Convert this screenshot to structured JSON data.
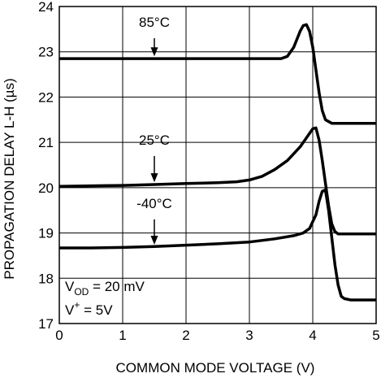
{
  "chart_data": {
    "type": "line",
    "title": "",
    "xlabel": "COMMON MODE VOLTAGE (V)",
    "ylabel": "PROPAGATION DELAY L-H (µs)",
    "xlim": [
      0,
      5
    ],
    "ylim": [
      17,
      24
    ],
    "xticks": [
      "0",
      "1",
      "2",
      "3",
      "4",
      "5"
    ],
    "yticks": [
      "17",
      "18",
      "19",
      "20",
      "21",
      "22",
      "23",
      "24"
    ],
    "grid": true,
    "series": [
      {
        "name": "85°C",
        "x": [
          0,
          0.5,
          1,
          1.5,
          2,
          2.5,
          3,
          3.5,
          3.6,
          3.7,
          3.8,
          3.85,
          3.9,
          3.95,
          4.0,
          4.05,
          4.1,
          4.15,
          4.2,
          4.3,
          4.4,
          4.6,
          5.0
        ],
        "y": [
          22.85,
          22.85,
          22.85,
          22.85,
          22.85,
          22.85,
          22.85,
          22.85,
          22.9,
          23.1,
          23.45,
          23.58,
          23.6,
          23.45,
          23.1,
          22.6,
          22.1,
          21.7,
          21.5,
          21.42,
          21.42,
          21.42,
          21.42
        ]
      },
      {
        "name": "25°C",
        "x": [
          0,
          0.5,
          1,
          1.5,
          2,
          2.5,
          2.8,
          3.0,
          3.2,
          3.4,
          3.6,
          3.8,
          3.9,
          4.0,
          4.05,
          4.1,
          4.15,
          4.2,
          4.25,
          4.3,
          4.35,
          4.4,
          4.5,
          5.0
        ],
        "y": [
          20.03,
          20.04,
          20.05,
          20.07,
          20.09,
          20.11,
          20.13,
          20.17,
          20.25,
          20.4,
          20.6,
          20.9,
          21.1,
          21.3,
          21.32,
          21.05,
          20.6,
          20.1,
          19.6,
          19.2,
          19.03,
          18.98,
          18.98,
          18.98
        ]
      },
      {
        "name": "-40°C",
        "x": [
          0,
          0.5,
          1,
          1.5,
          2,
          2.5,
          3.0,
          3.4,
          3.7,
          3.85,
          3.95,
          4.05,
          4.1,
          4.15,
          4.2,
          4.25,
          4.3,
          4.35,
          4.4,
          4.45,
          4.5,
          4.6,
          5.0
        ],
        "y": [
          18.67,
          18.67,
          18.68,
          18.7,
          18.73,
          18.76,
          18.8,
          18.87,
          18.94,
          19.0,
          19.1,
          19.4,
          19.7,
          19.92,
          19.95,
          19.5,
          18.9,
          18.3,
          17.85,
          17.6,
          17.55,
          17.52,
          17.52
        ]
      }
    ],
    "annotations": [
      {
        "text": "85°C",
        "x": 1.5,
        "y_text": 23.55,
        "arrow_from": 23.3,
        "arrow_to": 22.9
      },
      {
        "text": "25°C",
        "x": 1.5,
        "y_text": 20.95,
        "arrow_from": 20.7,
        "arrow_to": 20.12
      },
      {
        "text": "-40°C",
        "x": 1.5,
        "y_text": 19.55,
        "arrow_from": 19.3,
        "arrow_to": 18.74
      }
    ],
    "conditions": {
      "line1_main": "V",
      "line1_sub": "OD",
      "line1_rest": " = 20 mV",
      "line2_main": "V",
      "line2_sup": "+",
      "line2_rest": " = 5V"
    }
  }
}
